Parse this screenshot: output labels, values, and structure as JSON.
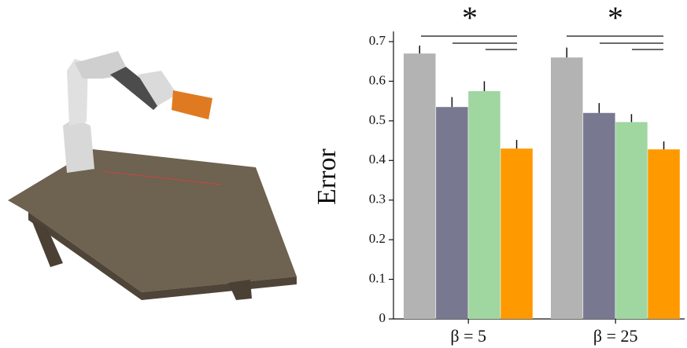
{
  "chart_data": {
    "type": "bar",
    "y_label": "Error",
    "categories": [
      "β = 5",
      "β = 25"
    ],
    "series": [
      {
        "color": "#b3b3b3",
        "values": [
          0.67,
          0.66
        ],
        "errors": [
          0.02,
          0.025
        ]
      },
      {
        "color": "#787891",
        "values": [
          0.535,
          0.52
        ],
        "errors": [
          0.025,
          0.025
        ]
      },
      {
        "color": "#a0d6a0",
        "values": [
          0.575,
          0.497
        ],
        "errors": [
          0.025,
          0.02
        ]
      },
      {
        "color": "#ff9900",
        "values": [
          0.43,
          0.428
        ],
        "errors": [
          0.022,
          0.02
        ]
      }
    ],
    "annotations": [
      "*",
      "*"
    ],
    "ylim": [
      0,
      0.7
    ],
    "yticks": [
      0,
      0.1,
      0.2,
      0.3,
      0.4,
      0.5,
      0.6,
      0.7
    ]
  }
}
